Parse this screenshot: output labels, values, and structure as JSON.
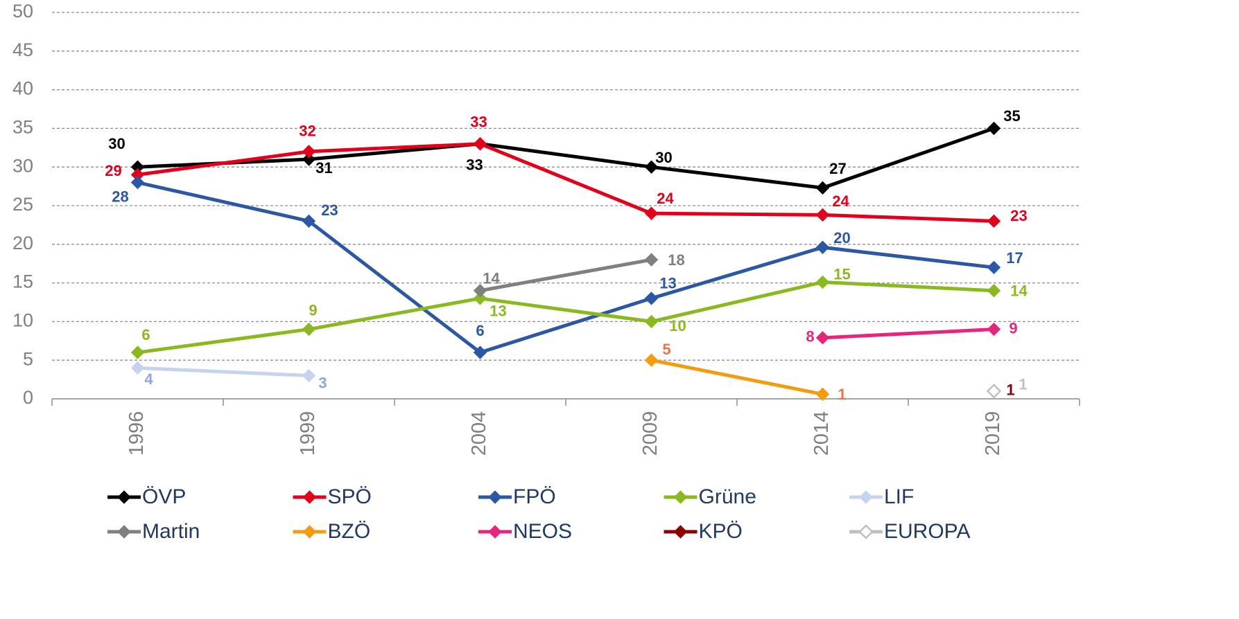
{
  "chart_data": {
    "type": "line",
    "categories": [
      "1996",
      "1999",
      "2004",
      "2009",
      "2014",
      "2019"
    ],
    "ylim": [
      0,
      50
    ],
    "yticks": [
      0,
      5,
      10,
      15,
      20,
      25,
      30,
      35,
      40,
      45,
      50
    ],
    "grid": true,
    "legend": "bottom",
    "series": [
      {
        "name": "ÖVP",
        "color": "#000000",
        "values": [
          30,
          31,
          33,
          30,
          27.3,
          35
        ],
        "value_labels": [
          "30",
          "31",
          "33",
          "30",
          "27",
          "35"
        ]
      },
      {
        "name": "SPÖ",
        "color": "#e2001a",
        "values": [
          29,
          32,
          33,
          24,
          23.8,
          23
        ],
        "value_labels": [
          "29",
          "32",
          "33",
          "24",
          "24",
          "23"
        ]
      },
      {
        "name": "FPÖ",
        "color": "#2b57a5",
        "values": [
          28,
          23,
          6,
          13,
          19.6,
          17
        ],
        "value_labels": [
          "28",
          "23",
          "6",
          "13",
          "20",
          "17"
        ]
      },
      {
        "name": "Grüne",
        "color": "#8ab820",
        "values": [
          6,
          9,
          13,
          10,
          15.1,
          14
        ],
        "value_labels": [
          "6",
          "9",
          "13",
          "10",
          "15",
          "14"
        ]
      },
      {
        "name": "LIF",
        "color": "#c5d3ef",
        "label_color": "#8fa5dc",
        "values": [
          4,
          3,
          null,
          null,
          null,
          null
        ]
      },
      {
        "name": "Martin",
        "color": "#7f7f7f",
        "values": [
          null,
          null,
          14,
          18,
          null,
          null
        ]
      },
      {
        "name": "BZÖ",
        "color": "#f39c12",
        "label_color": "#e8734a",
        "values": [
          null,
          null,
          null,
          5,
          0.6,
          null
        ],
        "value_labels": [
          null,
          null,
          null,
          "5",
          "1",
          null
        ]
      },
      {
        "name": "NEOS",
        "color": "#e5267c",
        "values": [
          null,
          null,
          null,
          null,
          7.9,
          9
        ],
        "value_labels": [
          null,
          null,
          null,
          null,
          "8",
          "9"
        ]
      },
      {
        "name": "KPÖ",
        "color": "#8b0000",
        "values": [
          null,
          null,
          null,
          null,
          null,
          1
        ]
      },
      {
        "name": "EUROPA",
        "color": "#bfbfbf",
        "marker": "hollow",
        "values": [
          null,
          null,
          null,
          null,
          null,
          1
        ]
      }
    ]
  }
}
